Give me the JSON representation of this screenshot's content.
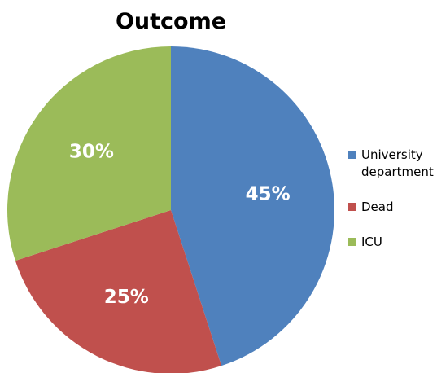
{
  "chart_data": {
    "type": "pie",
    "title": "Outcome",
    "categories": [
      "University department",
      "Dead",
      "ICU"
    ],
    "values": [
      45,
      25,
      30
    ],
    "value_labels": [
      "45%",
      "25%",
      "30%"
    ],
    "colors": [
      "#4f81bd",
      "#c0504d",
      "#9bbb59"
    ],
    "legend": "right"
  }
}
